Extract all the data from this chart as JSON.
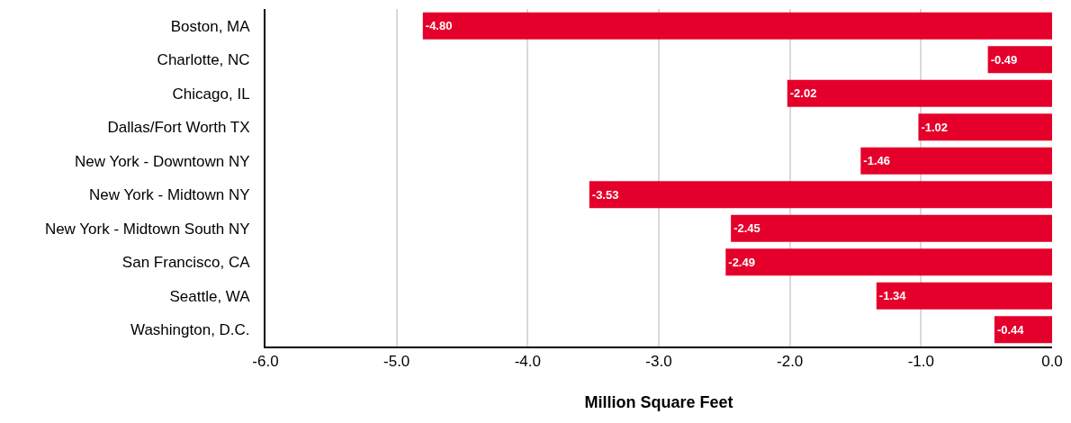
{
  "chart_data": {
    "type": "bar",
    "orientation": "horizontal",
    "xlabel": "Million Square Feet",
    "categories": [
      "Boston, MA",
      "Charlotte, NC",
      "Chicago, IL",
      "Dallas/Fort Worth TX",
      "New York - Downtown NY",
      "New York - Midtown NY",
      "New York - Midtown South NY",
      "San Francisco, CA",
      "Seattle, WA",
      "Washington, D.C."
    ],
    "values": [
      -4.8,
      -0.49,
      -2.02,
      -1.02,
      -1.46,
      -3.53,
      -2.45,
      -2.49,
      -1.34,
      -0.44
    ],
    "value_labels": [
      "-4.80",
      "-0.49",
      "-2.02",
      "-1.02",
      "-1.46",
      "-3.53",
      "-2.45",
      "-2.49",
      "-1.34",
      "-0.44"
    ],
    "color": "#e4002b",
    "xlim": [
      -6,
      0
    ],
    "xticks": [
      {
        "value": -6,
        "label": "-6.0"
      },
      {
        "value": -5,
        "label": "-5.0"
      },
      {
        "value": -4,
        "label": "-4.0"
      },
      {
        "value": -3,
        "label": "-3.0"
      },
      {
        "value": -2,
        "label": "-2.0"
      },
      {
        "value": -1,
        "label": "-1.0"
      },
      {
        "value": 0,
        "label": "0.0"
      }
    ],
    "grid": "x"
  }
}
